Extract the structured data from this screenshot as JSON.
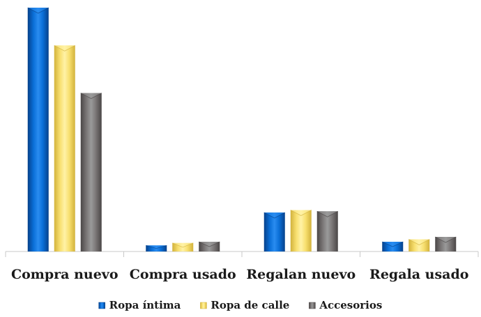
{
  "chart_data": {
    "type": "bar",
    "categories": [
      "Compra nuevo",
      "Compra usado",
      "Regalan nuevo",
      "Regala usado"
    ],
    "series": [
      {
        "name": "Ropa íntima",
        "values": [
          100,
          2.5,
          16,
          4
        ]
      },
      {
        "name": "Ropa de calle",
        "values": [
          84.5,
          3.5,
          17,
          5
        ]
      },
      {
        "name": "Accesorios",
        "values": [
          65,
          4,
          16.5,
          6
        ]
      }
    ],
    "ylim": [
      0,
      100
    ],
    "grid": false,
    "legend": "bottom",
    "colors": {
      "Ropa íntima": {
        "light": "#2a8cf0",
        "mid": "#0a6fd8",
        "dark": "#06418a"
      },
      "Ropa de calle": {
        "light": "#fff2a6",
        "mid": "#f8e070",
        "dark": "#d2b23c"
      },
      "Accesorios": {
        "light": "#9a9a9a",
        "mid": "#7b7777",
        "dark": "#4a4646"
      }
    }
  }
}
